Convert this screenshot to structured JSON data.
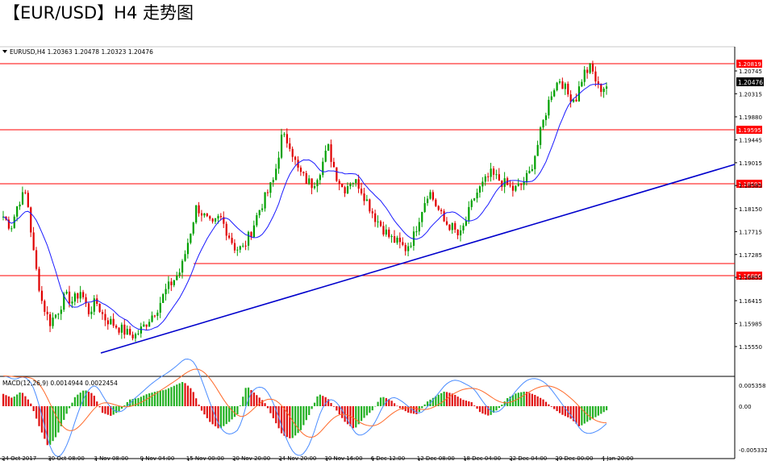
{
  "headline": "【EUR/USD】H4 走势图",
  "chart_data": {
    "type": "candlestick",
    "symbol_info": "EURUSD,H4  1.20363 1.20478 1.20323 1.20476",
    "indicator_label": "MACD(12,26,9) 0.0014944 0.0022454",
    "price_axis_ticks": [
      "1.20745",
      "1.20315",
      "1.19880",
      "1.19445",
      "1.19015",
      "1.18585",
      "1.18150",
      "1.17715",
      "1.17285",
      "1.16855",
      "1.16415",
      "1.15985",
      "1.15550"
    ],
    "macd_axis_ticks": [
      "0.005358",
      "0.00",
      "-0.005332"
    ],
    "time_labels": [
      "24 Oct 2017",
      "30 Oct 08:00",
      "3 Nov 08:00",
      "9 Nov 04:00",
      "15 Nov 00:00",
      "20 Nov 20:00",
      "24 Nov 20:00",
      "30 Nov 16:00",
      "6 Dec 12:00",
      "12 Dec 08:00",
      "18 Dec 04:00",
      "22 Dec 04:00",
      "29 Dec 00:00",
      "4 Jan 20:00"
    ],
    "horizontal_levels": [
      "1.20819",
      "1.19595",
      "1.18593",
      "1.16886"
    ],
    "current_price": "1.20476",
    "price_path": [
      1.18,
      1.178,
      1.183,
      1.1845,
      1.172,
      1.164,
      1.16,
      1.162,
      1.165,
      1.164,
      1.166,
      1.162,
      1.164,
      1.161,
      1.16,
      1.159,
      1.158,
      1.1575,
      1.159,
      1.161,
      1.163,
      1.166,
      1.168,
      1.17,
      1.176,
      1.182,
      1.18,
      1.178,
      1.18,
      1.177,
      1.174,
      1.174,
      1.177,
      1.181,
      1.184,
      1.187,
      1.195,
      1.194,
      1.189,
      1.187,
      1.186,
      1.189,
      1.193,
      1.188,
      1.185,
      1.187,
      1.186,
      1.183,
      1.18,
      1.178,
      1.176,
      1.175,
      1.174,
      1.176,
      1.181,
      1.185,
      1.182,
      1.179,
      1.178,
      1.176,
      1.18,
      1.184,
      1.186,
      1.188,
      1.187,
      1.186,
      1.185,
      1.186,
      1.188,
      1.193,
      1.199,
      1.204,
      1.206,
      1.203,
      1.202,
      1.207,
      1.208,
      1.204,
      1.2047
    ],
    "macd_hist_path": [
      0.0015,
      0.001,
      0.0018,
      0.0005,
      -0.0025,
      -0.005,
      -0.0035,
      -0.001,
      0.0012,
      0.002,
      0.0015,
      -0.0008,
      -0.0012,
      -0.0005,
      0.0008,
      0.001,
      0.0015,
      0.0018,
      0.002,
      0.0025,
      0.003,
      0.002,
      -0.0005,
      -0.002,
      -0.0028,
      -0.002,
      -0.001,
      0.0025,
      0.0015,
      0.0005,
      -0.0015,
      -0.0035,
      -0.004,
      -0.003,
      -0.001,
      0.0015,
      0.001,
      -0.0005,
      -0.002,
      -0.0028,
      -0.0015,
      -0.0005,
      0.0012,
      0.0008,
      -0.0002,
      -0.0008,
      -0.001,
      0.0005,
      0.0012,
      0.0018,
      0.0015,
      0.0008,
      0.0005,
      -0.0008,
      -0.0012,
      -0.0003,
      0.001,
      0.0016,
      0.0018,
      0.0014,
      0.0008,
      -0.0002,
      -0.001,
      -0.0015,
      -0.0025,
      -0.0018,
      -0.0012,
      -0.0005
    ],
    "colors": {
      "bull": "#00a000",
      "bear": "#e00000",
      "level": "#ff0000",
      "trendline": "#0000cc",
      "ma": "#1a1aff",
      "macd_up": "#22b022",
      "macd_down": "#e01010",
      "macd_line": "#4a8cff",
      "signal_line": "#ff6a2a"
    }
  }
}
